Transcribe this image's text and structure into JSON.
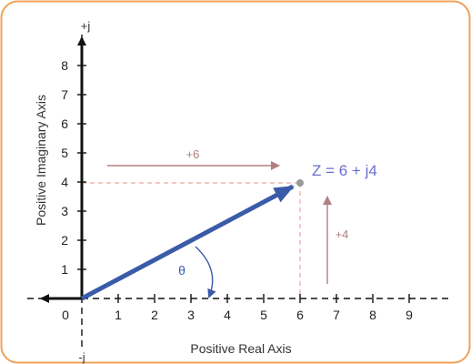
{
  "diagram": {
    "axis_labels": {
      "x": "Positive Real Axis",
      "y": "Positive Imaginary Axis",
      "top": "+j",
      "bottom": "-j"
    },
    "x_ticks": [
      "0",
      "1",
      "2",
      "3",
      "4",
      "5",
      "6",
      "7",
      "8",
      "9"
    ],
    "y_ticks": [
      "1",
      "2",
      "3",
      "4",
      "5",
      "6",
      "7",
      "8"
    ],
    "vector": {
      "real": 6,
      "imag": 4
    },
    "equation": "Z = 6 + j4",
    "real_component_label": "+6",
    "imag_component_label": "+4",
    "angle_label": "θ",
    "colors": {
      "border": "#f0a25a",
      "vector": "#3a5ba8",
      "equation": "#6a6fd0",
      "guide": "#e8a8a0",
      "component_arrow": "#b08080",
      "angle": "#3a5ba8",
      "axis": "#111111"
    }
  }
}
